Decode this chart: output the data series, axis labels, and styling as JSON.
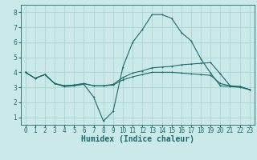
{
  "title": "",
  "xlabel": "Humidex (Indice chaleur)",
  "xlim": [
    -0.5,
    23.5
  ],
  "ylim": [
    0.5,
    8.5
  ],
  "xticks": [
    0,
    1,
    2,
    3,
    4,
    5,
    6,
    7,
    8,
    9,
    10,
    11,
    12,
    13,
    14,
    15,
    16,
    17,
    18,
    19,
    20,
    21,
    22,
    23
  ],
  "yticks": [
    1,
    2,
    3,
    4,
    5,
    6,
    7,
    8
  ],
  "bg_color": "#cce9e9",
  "line_color": "#1a6b6b",
  "grid_color": "#aad4d4",
  "line1_x": [
    0,
    1,
    2,
    3,
    4,
    5,
    6,
    7,
    8,
    9,
    10,
    11,
    12,
    13,
    14,
    15,
    16,
    17,
    18,
    19,
    20,
    21,
    22,
    23
  ],
  "line1_y": [
    4.0,
    3.6,
    3.85,
    3.25,
    3.05,
    3.1,
    3.2,
    2.35,
    0.75,
    1.4,
    4.35,
    6.0,
    6.85,
    7.85,
    7.85,
    7.6,
    6.65,
    6.1,
    4.9,
    3.95,
    3.1,
    3.05,
    3.0,
    2.85
  ],
  "line2_x": [
    0,
    1,
    2,
    3,
    4,
    5,
    6,
    7,
    8,
    9,
    10,
    11,
    12,
    13,
    14,
    15,
    16,
    17,
    18,
    19,
    20,
    21,
    22,
    23
  ],
  "line2_y": [
    4.0,
    3.6,
    3.85,
    3.25,
    3.1,
    3.15,
    3.25,
    3.1,
    3.1,
    3.15,
    3.5,
    3.7,
    3.85,
    4.0,
    4.0,
    4.0,
    3.95,
    3.9,
    3.85,
    3.8,
    3.25,
    3.1,
    3.05,
    2.85
  ],
  "line3_x": [
    0,
    1,
    2,
    3,
    4,
    5,
    6,
    7,
    8,
    9,
    10,
    11,
    12,
    13,
    14,
    15,
    16,
    17,
    18,
    19,
    20,
    21,
    22,
    23
  ],
  "line3_y": [
    4.0,
    3.6,
    3.85,
    3.25,
    3.1,
    3.15,
    3.25,
    3.1,
    3.1,
    3.2,
    3.65,
    3.95,
    4.1,
    4.3,
    4.35,
    4.4,
    4.5,
    4.55,
    4.6,
    4.65,
    3.9,
    3.1,
    3.05,
    2.85
  ],
  "lw": 0.8,
  "ms": 2.0,
  "xlabel_fontsize": 7.0,
  "tick_fontsize": 5.5
}
